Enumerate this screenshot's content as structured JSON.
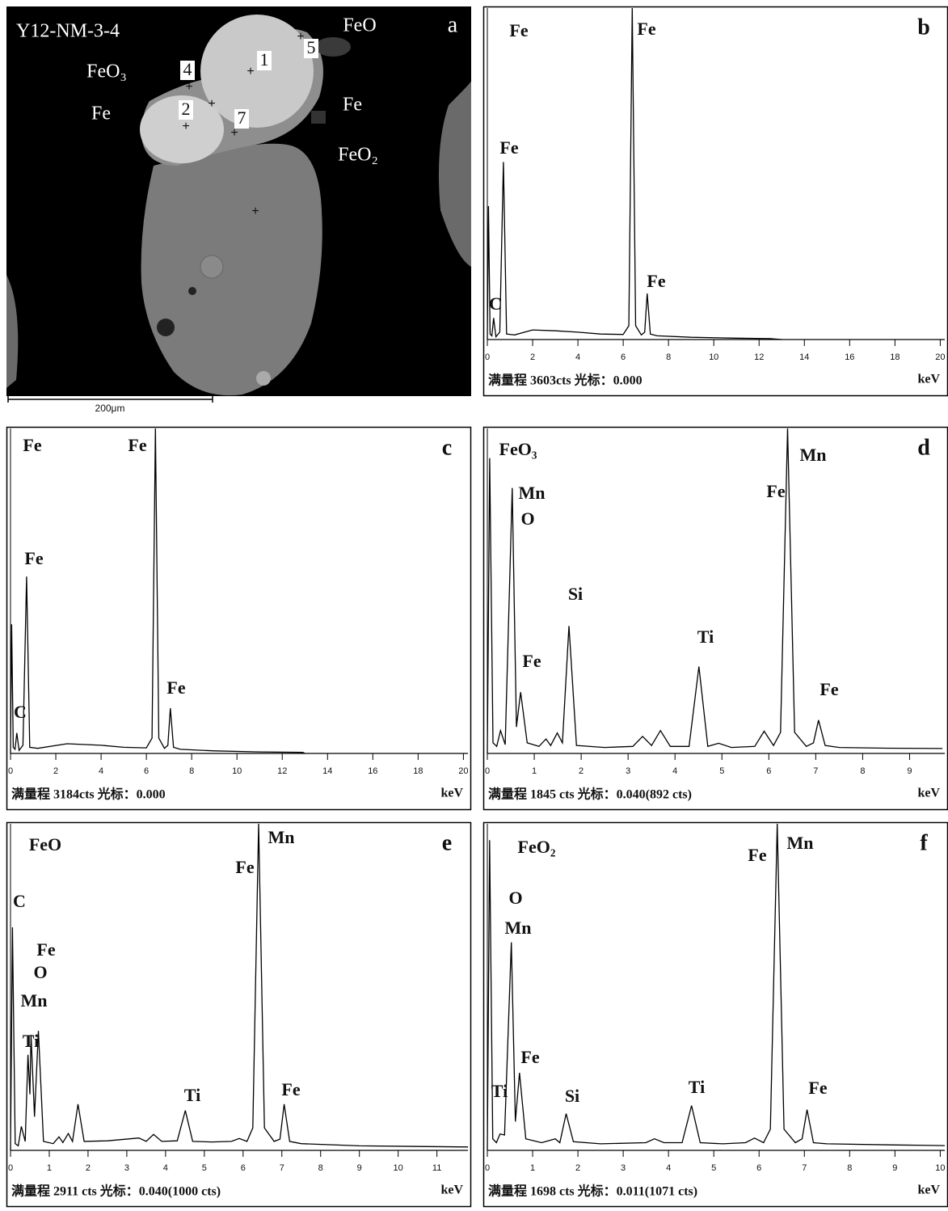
{
  "image_panel": {
    "sample": "Y12-NM-3-4",
    "panel_label": "a",
    "phase_labels": [
      "FeO",
      "FeO₃",
      "Fe",
      "Fe",
      "FeO₂"
    ],
    "point_labels": [
      "1",
      "2",
      "4",
      "5",
      "7"
    ],
    "scale_bar": "200μm"
  },
  "chart_data": [
    {
      "type": "line",
      "panel_label": "b",
      "footer": "满量程 3603cts 光标：0.000",
      "x_label": "keV",
      "annotations": [
        "Fe",
        "Fe",
        "Fe",
        "C",
        "Fe"
      ],
      "xlim": [
        0,
        20.2
      ],
      "ylim": [
        0,
        3603
      ],
      "xticks": [
        0,
        2,
        4,
        6,
        8,
        10,
        12,
        14,
        16,
        18,
        20
      ],
      "x": [
        0,
        0.05,
        0.12,
        0.2,
        0.28,
        0.38,
        0.55,
        0.71,
        0.85,
        1.2,
        2,
        3,
        4,
        5,
        6,
        6.25,
        6.4,
        6.55,
        6.8,
        6.95,
        7.06,
        7.2,
        7.5,
        9,
        11,
        12.5,
        13
      ],
      "series": [
        {
          "name": "spectrum",
          "color": "#000000",
          "values": [
            0,
            1450,
            60,
            40,
            235,
            30,
            80,
            1930,
            60,
            50,
            105,
            95,
            80,
            60,
            55,
            150,
            3603,
            150,
            50,
            80,
            500,
            60,
            40,
            25,
            15,
            10,
            0
          ]
        }
      ]
    },
    {
      "type": "line",
      "panel_label": "c",
      "footer": "满量程 3184cts 光标：0.000",
      "x_label": "keV",
      "annotations": [
        "Fe",
        "Fe",
        "Fe",
        "C",
        "Fe"
      ],
      "xlim": [
        0,
        20.2
      ],
      "ylim": [
        0,
        3184
      ],
      "xticks": [
        0,
        2,
        4,
        6,
        8,
        10,
        12,
        14,
        16,
        18,
        20
      ],
      "x": [
        0,
        0.05,
        0.12,
        0.2,
        0.28,
        0.38,
        0.55,
        0.71,
        0.85,
        1.2,
        2.5,
        3,
        4,
        5,
        6,
        6.25,
        6.4,
        6.55,
        6.8,
        6.95,
        7.06,
        7.2,
        7.5,
        9,
        11,
        12.9,
        13
      ],
      "series": [
        {
          "name": "spectrum",
          "color": "#000000",
          "values": [
            0,
            1265,
            60,
            40,
            200,
            30,
            80,
            1733,
            60,
            50,
            95,
            90,
            80,
            60,
            55,
            150,
            3184,
            150,
            50,
            80,
            443,
            60,
            40,
            25,
            15,
            10,
            0
          ]
        }
      ]
    },
    {
      "type": "line",
      "panel_label": "d",
      "footer": "满量程 1845 cts 光标：0.040(892 cts)",
      "x_label": "keV",
      "annotations": [
        "FeO₃",
        "Mn",
        "O",
        "Fe",
        "Si",
        "Ti",
        "Fe",
        "Mn",
        "Fe"
      ],
      "xlim": [
        0,
        9.75
      ],
      "ylim": [
        0,
        1845
      ],
      "xticks": [
        0,
        1,
        2,
        3,
        4,
        5,
        6,
        7,
        8,
        9
      ],
      "x": [
        0,
        0.05,
        0.12,
        0.2,
        0.28,
        0.38,
        0.53,
        0.62,
        0.71,
        0.85,
        1.1,
        1.25,
        1.35,
        1.49,
        1.6,
        1.74,
        1.9,
        2.5,
        3.1,
        3.31,
        3.5,
        3.69,
        3.9,
        4.3,
        4.51,
        4.7,
        4.93,
        5.2,
        5.7,
        5.9,
        6.1,
        6.25,
        6.4,
        6.55,
        6.8,
        6.95,
        7.06,
        7.2,
        7.5,
        8.5,
        9.7
      ],
      "series": [
        {
          "name": "spectrum",
          "color": "#000000",
          "values": [
            0,
            1676,
            60,
            40,
            130,
            50,
            1507,
            150,
            348,
            60,
            40,
            82,
            45,
            116,
            60,
            724,
            45,
            34,
            40,
            97,
            45,
            130,
            40,
            40,
            493,
            40,
            58,
            34,
            40,
            126,
            45,
            120,
            1845,
            120,
            40,
            60,
            189,
            45,
            34,
            30,
            28
          ]
        }
      ]
    },
    {
      "type": "line",
      "panel_label": "e",
      "footer": "满量程 2911 cts 光标：0.040(1000 cts)",
      "x_label": "keV",
      "annotations": [
        "FeO",
        "C",
        "Fe",
        "O",
        "Mn",
        "Ti",
        "Ti",
        "Fe",
        "Mn",
        "Fe"
      ],
      "xlim": [
        0,
        11.8
      ],
      "ylim": [
        0,
        2911
      ],
      "xticks": [
        0,
        1,
        2,
        3,
        4,
        5,
        6,
        7,
        8,
        9,
        10,
        11
      ],
      "x": [
        0,
        0.05,
        0.12,
        0.2,
        0.28,
        0.38,
        0.45,
        0.5,
        0.53,
        0.62,
        0.72,
        0.85,
        1.1,
        1.25,
        1.35,
        1.49,
        1.6,
        1.74,
        1.9,
        2.5,
        3.31,
        3.5,
        3.69,
        3.9,
        4.3,
        4.51,
        4.7,
        5.2,
        5.7,
        5.9,
        6.1,
        6.25,
        6.4,
        6.55,
        6.8,
        6.95,
        7.06,
        7.2,
        7.5,
        9,
        11.8
      ],
      "series": [
        {
          "name": "spectrum",
          "color": "#000000",
          "values": [
            0,
            1988,
            60,
            40,
            213,
            80,
            852,
            500,
            1030,
            300,
            1065,
            80,
            60,
            120,
            70,
            150,
            80,
            412,
            80,
            85,
            110,
            80,
            142,
            80,
            85,
            355,
            80,
            75,
            80,
            106,
            80,
            200,
            2911,
            200,
            80,
            100,
            412,
            80,
            60,
            40,
            30
          ]
        }
      ]
    },
    {
      "type": "line",
      "panel_label": "f",
      "footer": "满量程 1698 cts 光标：0.011(1071 cts)",
      "x_label": "keV",
      "annotations": [
        "FeO₂",
        "O",
        "Mn",
        "Ti",
        "Fe",
        "Si",
        "Ti",
        "Fe",
        "Mn",
        "Fe"
      ],
      "xlim": [
        0,
        10.1
      ],
      "ylim": [
        0,
        1698
      ],
      "xticks": [
        0,
        1,
        2,
        3,
        4,
        5,
        6,
        7,
        8,
        9,
        10
      ],
      "x": [
        0,
        0.05,
        0.12,
        0.2,
        0.28,
        0.38,
        0.53,
        0.62,
        0.71,
        0.85,
        1.2,
        1.5,
        1.6,
        1.74,
        1.9,
        2.5,
        3.5,
        3.69,
        3.9,
        4.3,
        4.51,
        4.7,
        5.2,
        5.7,
        5.9,
        6.1,
        6.25,
        6.4,
        6.55,
        6.8,
        6.95,
        7.06,
        7.2,
        7.5,
        9,
        10.1
      ],
      "series": [
        {
          "name": "spectrum",
          "color": "#000000",
          "values": [
            0,
            1613,
            60,
            40,
            85,
            80,
            1082,
            150,
            403,
            60,
            40,
            60,
            40,
            191,
            45,
            34,
            40,
            60,
            40,
            40,
            233,
            40,
            34,
            40,
            64,
            40,
            110,
            1698,
            110,
            40,
            60,
            212,
            40,
            34,
            28,
            25
          ]
        }
      ]
    }
  ]
}
